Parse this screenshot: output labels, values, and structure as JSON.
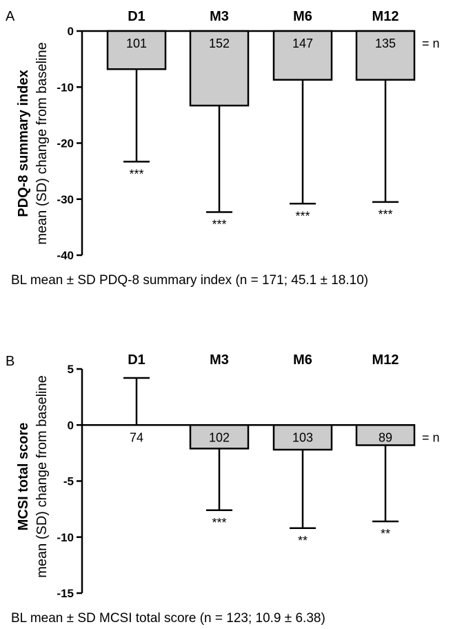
{
  "chart_data": [
    {
      "type": "bar",
      "panel_label": "A",
      "categories": [
        "D1",
        "M3",
        "M6",
        "M12"
      ],
      "values": [
        -6.8,
        -13.3,
        -8.7,
        -8.7
      ],
      "error_sd": [
        16.5,
        19.0,
        22.1,
        21.8
      ],
      "n": [
        "101",
        "152",
        "147",
        "135"
      ],
      "n_suffix": "= n",
      "significance": [
        "***",
        "***",
        "***",
        "***"
      ],
      "ylabel_title": "PDQ-8 summary index",
      "ylabel": "mean (SD) change from baseline",
      "ylim": [
        -40,
        0
      ],
      "yticks": [
        0,
        -10,
        -20,
        -30,
        -40
      ],
      "ytick_labels": [
        "0",
        "-10",
        "-20",
        "-30",
        "-40"
      ],
      "caption": "BL mean ± SD PDQ-8 summary index (n = 171; 45.1 ± 18.10)",
      "grid": false,
      "bar_color": "#cccccc"
    },
    {
      "type": "bar",
      "panel_label": "B",
      "categories": [
        "D1",
        "M3",
        "M6",
        "M12"
      ],
      "values": [
        0,
        -2.1,
        -2.2,
        -1.8
      ],
      "error_sd": [
        4.2,
        5.5,
        7.0,
        6.8
      ],
      "error_direction": [
        "up",
        "down",
        "down",
        "down"
      ],
      "n": [
        "74",
        "102",
        "103",
        "89"
      ],
      "n_suffix": "= n",
      "significance": [
        "",
        "***",
        "**",
        "**"
      ],
      "ylabel_title": "MCSI total score",
      "ylabel": "mean (SD) change from baseline",
      "ylim": [
        -15,
        5
      ],
      "yticks": [
        5,
        0,
        -5,
        -10,
        -15
      ],
      "ytick_labels": [
        "5",
        "0",
        "-5",
        "-10",
        "-15"
      ],
      "caption": "BL mean ± SD MCSI total score (n = 123; 10.9 ± 6.38)",
      "grid": false,
      "bar_color": "#cccccc"
    }
  ]
}
